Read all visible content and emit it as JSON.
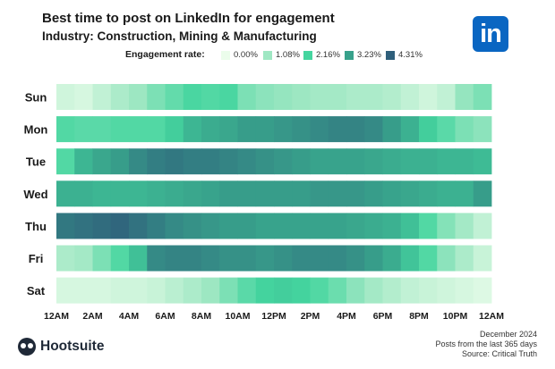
{
  "header": {
    "title": "Best time to post on LinkedIn for engagement",
    "subtitle": "Industry: Construction, Mining & Manufacturing",
    "logo_text": "in"
  },
  "legend": {
    "label": "Engagement rate:",
    "items": [
      {
        "label": "0.00%",
        "color": "#ebfdeb"
      },
      {
        "label": "1.08%",
        "color": "#9fe7c3"
      },
      {
        "label": "2.16%",
        "color": "#45d59f"
      },
      {
        "label": "3.23%",
        "color": "#38a18b"
      },
      {
        "label": "4.31%",
        "color": "#2f5f7b"
      }
    ]
  },
  "chart_data": {
    "type": "heatmap",
    "title": "Best time to post on LinkedIn for engagement",
    "subtitle": "Industry: Construction, Mining & Manufacturing",
    "xlabel": "",
    "ylabel": "",
    "value_range": [
      0,
      4.31
    ],
    "value_unit": "%",
    "rows": [
      "Sun",
      "Mon",
      "Tue",
      "Wed",
      "Thu",
      "Fri",
      "Sat"
    ],
    "columns": [
      "12AM",
      "1AM",
      "2AM",
      "3AM",
      "4AM",
      "5AM",
      "6AM",
      "7AM",
      "8AM",
      "9AM",
      "10AM",
      "11AM",
      "12PM",
      "1PM",
      "2PM",
      "3PM",
      "4PM",
      "5PM",
      "6PM",
      "7PM",
      "8PM",
      "9PM",
      "10PM",
      "11PM"
    ],
    "x_tick_labels": [
      "12AM",
      "2AM",
      "4AM",
      "6AM",
      "8AM",
      "10AM",
      "12PM",
      "2PM",
      "4PM",
      "6PM",
      "8PM",
      "10PM",
      "12AM"
    ],
    "values": [
      [
        0.4,
        0.3,
        0.6,
        0.9,
        1.1,
        1.5,
        1.8,
        2.1,
        2.0,
        2.1,
        1.5,
        1.3,
        1.2,
        1.1,
        1.0,
        1.0,
        0.9,
        0.9,
        0.8,
        0.6,
        0.4,
        0.6,
        1.2,
        1.5
      ],
      [
        2.0,
        1.9,
        1.9,
        2.0,
        2.0,
        2.0,
        2.3,
        2.8,
        3.0,
        3.1,
        3.3,
        3.3,
        3.4,
        3.5,
        3.6,
        3.7,
        3.7,
        3.6,
        3.3,
        2.9,
        2.3,
        1.9,
        1.5,
        1.3
      ],
      [
        2.0,
        2.8,
        3.1,
        3.3,
        3.6,
        3.8,
        3.9,
        3.8,
        3.8,
        3.7,
        3.6,
        3.5,
        3.4,
        3.3,
        3.2,
        3.2,
        3.2,
        3.1,
        3.0,
        2.9,
        2.9,
        2.8,
        2.8,
        2.7
      ],
      [
        2.9,
        2.9,
        2.8,
        2.8,
        2.8,
        2.9,
        3.0,
        3.1,
        3.2,
        3.3,
        3.3,
        3.3,
        3.3,
        3.3,
        3.4,
        3.4,
        3.4,
        3.3,
        3.2,
        3.1,
        3.0,
        2.9,
        2.9,
        3.3
      ],
      [
        3.9,
        4.0,
        4.1,
        4.2,
        4.0,
        3.8,
        3.6,
        3.5,
        3.4,
        3.3,
        3.3,
        3.2,
        3.2,
        3.2,
        3.2,
        3.2,
        3.1,
        3.0,
        2.9,
        2.6,
        2.0,
        1.4,
        1.0,
        0.6
      ],
      [
        0.9,
        1.0,
        1.5,
        2.0,
        2.6,
        3.6,
        3.7,
        3.7,
        3.6,
        3.5,
        3.5,
        3.4,
        3.5,
        3.6,
        3.6,
        3.6,
        3.5,
        3.3,
        3.0,
        2.5,
        2.0,
        1.3,
        0.9,
        0.5
      ],
      [
        0.3,
        0.3,
        0.3,
        0.4,
        0.4,
        0.5,
        0.7,
        0.9,
        1.1,
        1.5,
        1.9,
        2.2,
        2.3,
        2.2,
        2.0,
        1.7,
        1.3,
        1.0,
        0.8,
        0.6,
        0.5,
        0.4,
        0.3,
        0.2
      ]
    ]
  },
  "footer": {
    "brand": "Hootsuite",
    "date": "December 2024",
    "note": "Posts from the last 365 days",
    "source": "Source: Critical Truth"
  }
}
